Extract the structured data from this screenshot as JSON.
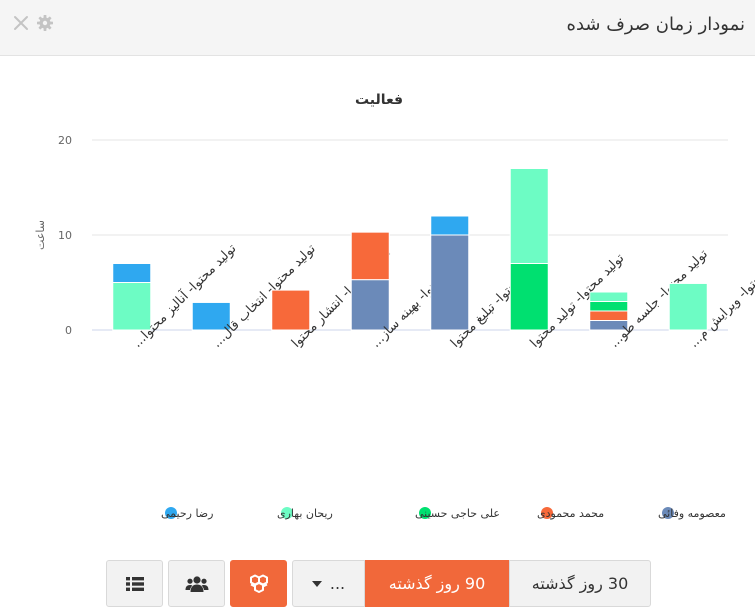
{
  "header": {
    "title": "نمودار زمان صرف شده",
    "icons": [
      "close-icon",
      "gear-icon"
    ]
  },
  "toolbar": {
    "range_30_label": "30 روز گذشته",
    "range_90_label": "90 روز گذشته",
    "more_label": "...",
    "icons": [
      "list-icon",
      "users-icon",
      "cubes-icon",
      "caret-down-icon"
    ]
  },
  "colors": {
    "accent": "#f1683a",
    "series": [
      "#2fa8f0",
      "#6dfcc4",
      "#00e070",
      "#f7693a",
      "#6b8ab9"
    ]
  },
  "chart_data": {
    "type": "bar",
    "stacked": true,
    "title": "فعالیت",
    "ylabel": "ساعت",
    "ylim": [
      0,
      20
    ],
    "yticks": [
      0,
      10,
      20
    ],
    "grid": true,
    "legend": "bottom",
    "categories": [
      "تولید محتوا- آنالیز محتوا...",
      "تولید محتوا- انتخاب قال...",
      "تولید محتوا- انتشار محتوا",
      "تولید محتوا- بهینه ساز...",
      "تولید محتوا- تبلیغ محتوا",
      "تولید محتوا- تولید محتوا",
      "تولید محتوا- جلسه طو...",
      "تولید محتوا- ویرایش م..."
    ],
    "series": [
      {
        "name": "معصومه وفائی",
        "color": "#6b8ab9",
        "values": [
          0,
          0,
          0,
          5.3,
          10,
          0,
          1,
          0
        ]
      },
      {
        "name": "محمد محمودی",
        "color": "#f7693a",
        "values": [
          0,
          0,
          4.2,
          5,
          0,
          0,
          1,
          0
        ]
      },
      {
        "name": "علی حاجی حسینی",
        "color": "#00e070",
        "values": [
          0,
          0,
          0,
          0,
          0,
          7,
          1,
          0
        ]
      },
      {
        "name": "ریحان بهاری",
        "color": "#6dfcc4",
        "values": [
          5,
          0,
          0,
          0,
          0,
          10,
          1,
          4.9
        ]
      },
      {
        "name": "رضا رحیمی",
        "color": "#2fa8f0",
        "values": [
          2,
          2.9,
          0,
          0,
          2,
          0,
          0,
          0
        ]
      }
    ]
  }
}
